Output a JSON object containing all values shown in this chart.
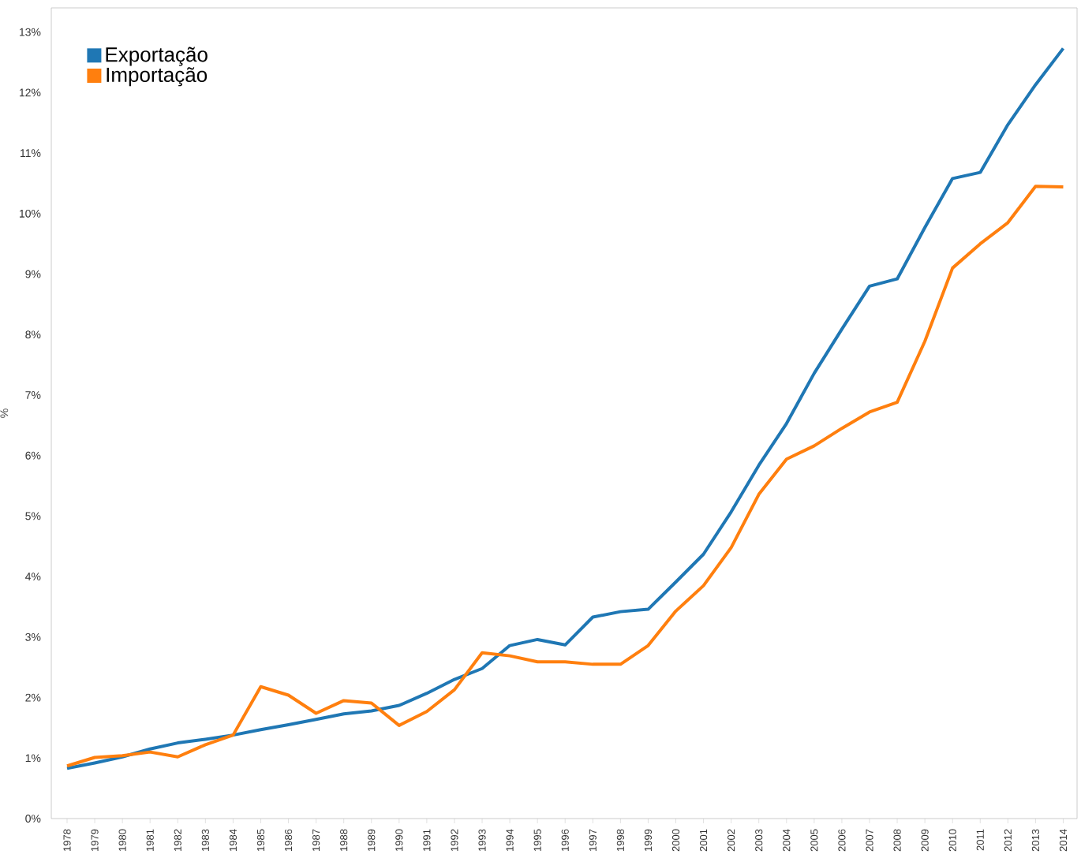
{
  "chart_data": {
    "type": "line",
    "ylabel": "%",
    "categories": [
      "1978",
      "1979",
      "1980",
      "1981",
      "1982",
      "1983",
      "1984",
      "1985",
      "1986",
      "1987",
      "1988",
      "1989",
      "1990",
      "1991",
      "1992",
      "1993",
      "1994",
      "1995",
      "1996",
      "1997",
      "1998",
      "1999",
      "2000",
      "2001",
      "2002",
      "2003",
      "2004",
      "2005",
      "2006",
      "2007",
      "2008",
      "2009",
      "2010",
      "2011",
      "2012",
      "2013",
      "2014"
    ],
    "series": [
      {
        "name": "Exportação",
        "color": "#1f77b4",
        "values": [
          0.83,
          0.92,
          1.02,
          1.15,
          1.25,
          1.31,
          1.38,
          1.47,
          1.55,
          1.64,
          1.73,
          1.78,
          1.87,
          2.07,
          2.3,
          2.48,
          2.86,
          2.96,
          2.87,
          3.33,
          3.42,
          3.46,
          3.91,
          4.37,
          5.07,
          5.84,
          6.53,
          7.36,
          8.09,
          8.8,
          8.92,
          9.77,
          10.58,
          10.68,
          11.47,
          12.13,
          12.73
        ]
      },
      {
        "name": "Importação",
        "color": "#ff7f0e",
        "values": [
          0.87,
          1.01,
          1.04,
          1.1,
          1.02,
          1.22,
          1.38,
          2.18,
          2.04,
          1.74,
          1.95,
          1.91,
          1.54,
          1.77,
          2.13,
          2.74,
          2.69,
          2.59,
          2.59,
          2.55,
          2.55,
          2.86,
          3.43,
          3.85,
          4.48,
          5.36,
          5.94,
          6.16,
          6.45,
          6.72,
          6.88,
          7.89,
          9.1,
          9.5,
          9.85,
          10.45,
          10.44
        ]
      }
    ],
    "ylim": [
      0,
      13.4
    ],
    "yticks": [
      {
        "value": 0,
        "label": "0%"
      },
      {
        "value": 1,
        "label": "1%"
      },
      {
        "value": 2,
        "label": "2%"
      },
      {
        "value": 3,
        "label": "3%"
      },
      {
        "value": 4,
        "label": "4%"
      },
      {
        "value": 5,
        "label": "5%"
      },
      {
        "value": 6,
        "label": "6%"
      },
      {
        "value": 7,
        "label": "7%"
      },
      {
        "value": 8,
        "label": "8%"
      },
      {
        "value": 9,
        "label": "9%"
      },
      {
        "value": 10,
        "label": "10%"
      },
      {
        "value": 11,
        "label": "11%"
      },
      {
        "value": 12,
        "label": "12%"
      },
      {
        "value": 13,
        "label": "13%"
      }
    ],
    "legend": "top left",
    "grid": false,
    "marker": "none",
    "line_style": "solid"
  }
}
